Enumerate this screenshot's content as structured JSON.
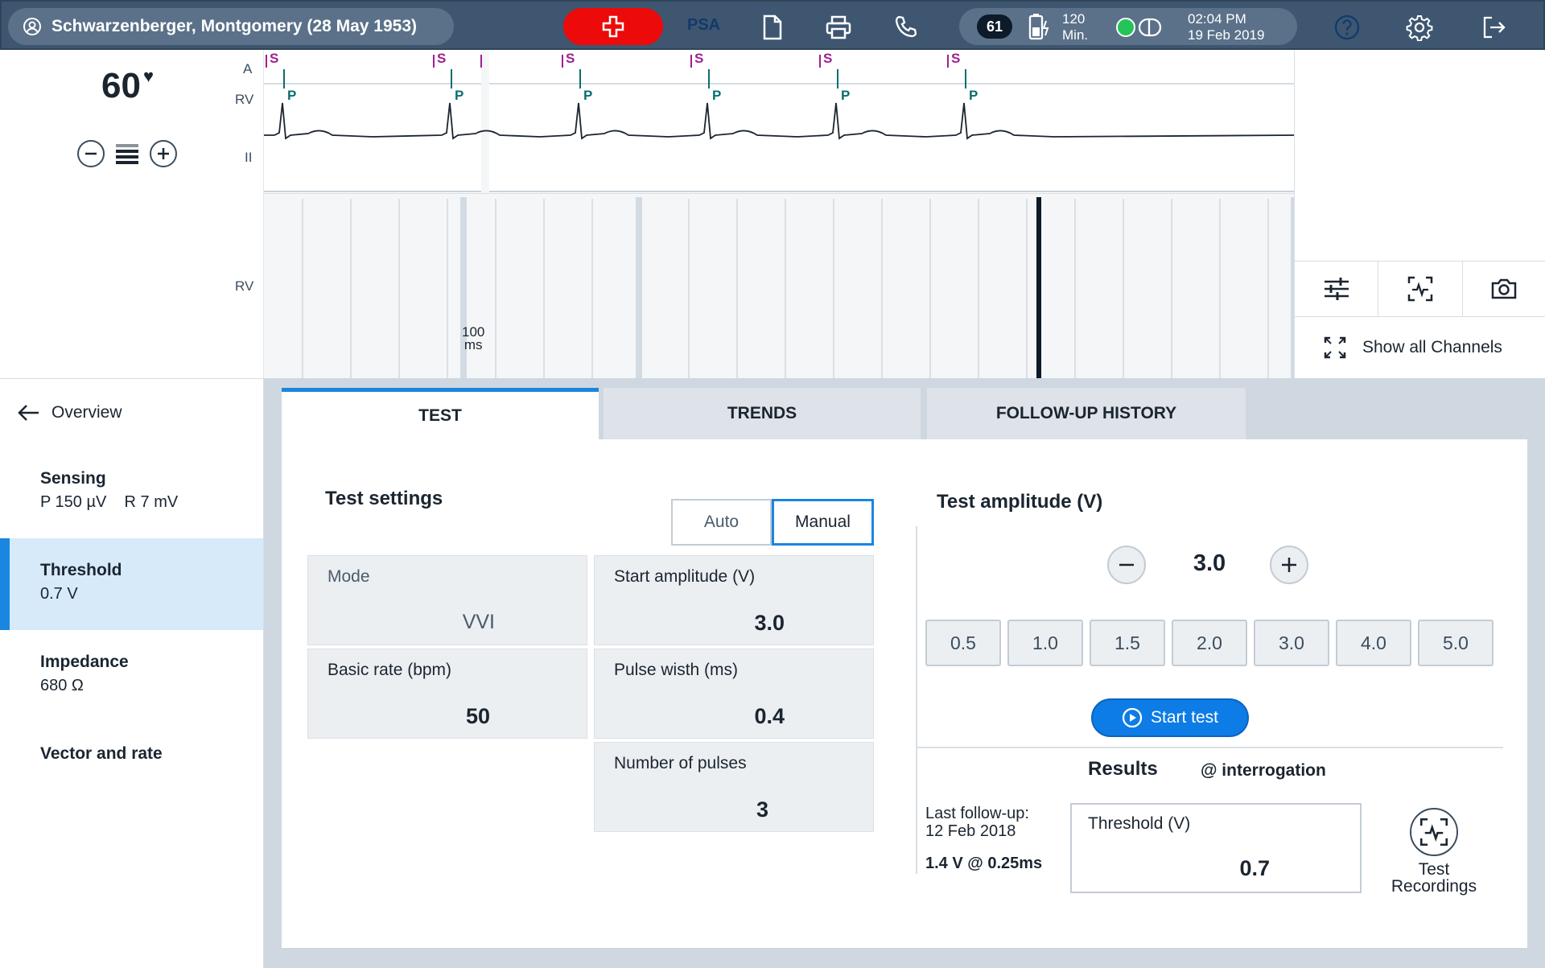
{
  "header": {
    "patient": "Schwarzenberger, Montgomery (28 May 1953)",
    "mode_label": "PSA",
    "heart_rate_badge": "61",
    "battery_value": "120",
    "battery_unit": "Min.",
    "time": "02:04 PM",
    "date": "19 Feb 2019",
    "icons": [
      "user-icon",
      "emergency-cross-icon",
      "document-icon",
      "printer-icon",
      "phone-icon",
      "battery-icon",
      "connection-status-icon",
      "help-icon",
      "settings-gear-icon",
      "logout-icon"
    ],
    "colors": {
      "bar": "#3e5670",
      "emergency": "#ec0a0a",
      "status_ok": "#24c45a"
    }
  },
  "ecg": {
    "rate": "60",
    "rate_icon": "heart-icon",
    "channels": [
      "A",
      "RV",
      "II",
      "RV"
    ],
    "sense_marker": "S",
    "pace_marker": "P",
    "scale_value": "100",
    "scale_unit": "ms",
    "colors": {
      "sense": "#a01e8c",
      "pace": "#0b6e6e",
      "trace": "#1b2530"
    }
  },
  "right_panel": {
    "tools": [
      "filter-sliders-icon",
      "ecg-capture-icon",
      "camera-icon"
    ],
    "show_all_label": "Show all Channels"
  },
  "nav": {
    "back_label": "Overview",
    "items": [
      {
        "title": "Sensing",
        "sub": "P 150 µV    R 7 mV"
      },
      {
        "title": "Threshold",
        "sub": "0.7 V"
      },
      {
        "title": "Impedance",
        "sub": "680 Ω"
      },
      {
        "title": "Vector and rate",
        "sub": ""
      }
    ]
  },
  "tabs": [
    "TEST",
    "TRENDS",
    "FOLLOW-UP HISTORY"
  ],
  "test_settings": {
    "title": "Test settings",
    "toggle": [
      "Auto",
      "Manual"
    ],
    "params": [
      {
        "label": "Mode",
        "value": "VVI"
      },
      {
        "label": "Start amplitude (V)",
        "value": "3.0"
      },
      {
        "label": "Basic rate (bpm)",
        "value": "50"
      },
      {
        "label": "Pulse wisth (ms)",
        "value": "0.4"
      },
      {
        "label": "Number of pulses",
        "value": "3"
      }
    ]
  },
  "test_amplitude": {
    "title": "Test amplitude (V)",
    "value": "3.0",
    "presets": [
      "0.5",
      "1.0",
      "1.5",
      "2.0",
      "3.0",
      "4.0",
      "5.0"
    ],
    "start_label": "Start test"
  },
  "results": {
    "title": "Results",
    "subtitle": "@ interrogation",
    "last_followup_label": "Last follow-up:",
    "last_followup_date": "12 Feb 2018",
    "last_followup_value": "1.4 V @ 0.25ms",
    "threshold_label": "Threshold (V)",
    "threshold_value": "0.7",
    "recordings_label_1": "Test",
    "recordings_label_2": "Recordings"
  }
}
